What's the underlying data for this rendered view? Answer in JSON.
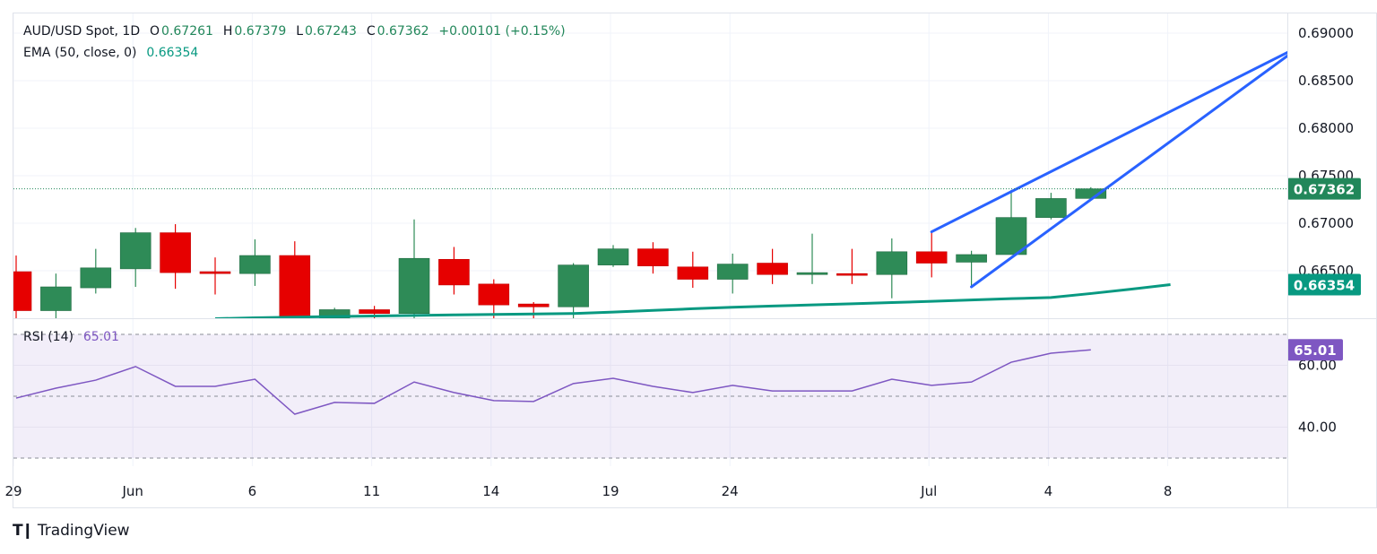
{
  "header": {
    "symbol": "AUD/USD Spot, 1D",
    "o_label": "O",
    "o": "0.67261",
    "h_label": "H",
    "h": "0.67379",
    "l_label": "L",
    "l": "0.67243",
    "c_label": "C",
    "c": "0.67362",
    "change": "+0.00101 (+0.15%)",
    "ema_label": "EMA (50, close, 0)",
    "ema_value": "0.66354",
    "rsi_label": "RSI (14)",
    "rsi_value": "65.01"
  },
  "colors": {
    "up": "#2e8b57",
    "down": "#e60000",
    "ema": "#089981",
    "rsi": "#7e57c2",
    "trendline": "#2962ff",
    "close_badge": "#22875a"
  },
  "footer": {
    "brand": "TradingView"
  },
  "chart_data": [
    {
      "type": "candlestick",
      "ylim": [
        0.66,
        0.6915
      ],
      "price_ticks": [
        "0.69000",
        "0.68500",
        "0.68000",
        "0.67500",
        "0.67000",
        "0.66500"
      ],
      "x_ticks": [
        {
          "label": "29",
          "index": 0
        },
        {
          "label": "Jun",
          "index": 3
        },
        {
          "label": "6",
          "index": 6
        },
        {
          "label": "11",
          "index": 9
        },
        {
          "label": "14",
          "index": 12
        },
        {
          "label": "19",
          "index": 15
        },
        {
          "label": "24",
          "index": 18
        },
        {
          "label": "Jul",
          "index": 23
        },
        {
          "label": "4",
          "index": 26
        },
        {
          "label": "8",
          "index": 29
        }
      ],
      "candles": [
        [
          0.6649,
          0.6666,
          0.66,
          0.6608
        ],
        [
          0.6608,
          0.6647,
          0.66,
          0.6633
        ],
        [
          0.6632,
          0.6673,
          0.6626,
          0.6653
        ],
        [
          0.6652,
          0.6695,
          0.6633,
          0.669
        ],
        [
          0.669,
          0.6699,
          0.6631,
          0.6648
        ],
        [
          0.6649,
          0.6664,
          0.6625,
          0.6647
        ],
        [
          0.6647,
          0.6683,
          0.6634,
          0.6666
        ],
        [
          0.6666,
          0.6681,
          0.66,
          0.66
        ],
        [
          0.66,
          0.6611,
          0.6598,
          0.6609
        ],
        [
          0.6609,
          0.6613,
          0.66,
          0.6605
        ],
        [
          0.6605,
          0.6704,
          0.66,
          0.6663
        ],
        [
          0.6662,
          0.6675,
          0.6625,
          0.6635
        ],
        [
          0.6636,
          0.6641,
          0.66,
          0.6614
        ],
        [
          0.6615,
          0.6617,
          0.66,
          0.6612
        ],
        [
          0.6612,
          0.6658,
          0.66,
          0.6656
        ],
        [
          0.6656,
          0.6677,
          0.6654,
          0.6673
        ],
        [
          0.6673,
          0.668,
          0.6647,
          0.6655
        ],
        [
          0.6654,
          0.667,
          0.6632,
          0.6641
        ],
        [
          0.6641,
          0.6668,
          0.6626,
          0.6657
        ],
        [
          0.6658,
          0.6673,
          0.6636,
          0.6646
        ],
        [
          0.6646,
          0.6689,
          0.6636,
          0.6648
        ],
        [
          0.6647,
          0.6673,
          0.6636,
          0.6646
        ],
        [
          0.6646,
          0.6684,
          0.6621,
          0.667
        ],
        [
          0.667,
          0.6691,
          0.6643,
          0.6658
        ],
        [
          0.6659,
          0.6671,
          0.6633,
          0.6667
        ],
        [
          0.6667,
          0.6735,
          0.6667,
          0.6706
        ],
        [
          0.6706,
          0.6732,
          0.6704,
          0.6726
        ],
        [
          0.67261,
          0.67379,
          0.67243,
          0.67362
        ]
      ],
      "ema50": {
        "name": "EMA (50, close, 0)",
        "start_index": 5,
        "values": [
          0.65995,
          0.66005,
          0.66012,
          0.66018,
          0.66024,
          0.6603,
          0.66035,
          0.6604,
          0.66045,
          0.6605,
          0.66065,
          0.66082,
          0.661,
          0.66115,
          0.66128,
          0.6614,
          0.66152,
          0.66165,
          0.66178,
          0.66192,
          0.66206,
          0.66218,
          0.6626,
          0.66305,
          0.66354
        ]
      },
      "last_price": 0.67362,
      "trendlines": [
        {
          "from": [
            23,
            0.6691
          ],
          "to": [
            32,
            0.6881
          ]
        },
        {
          "from": [
            24,
            0.6633
          ],
          "to": [
            32,
            0.6878
          ]
        }
      ]
    },
    {
      "type": "line",
      "name": "RSI (14)",
      "ylim": [
        25,
        75
      ],
      "y_ticks": [
        "60.00",
        "40.00"
      ],
      "bands": [
        70,
        50,
        30
      ],
      "values": [
        49.4,
        52.6,
        55.2,
        59.6,
        53.2,
        53.2,
        55.5,
        44.2,
        48.0,
        47.7,
        54.6,
        51.2,
        48.6,
        48.3,
        54.1,
        55.8,
        53.2,
        51.2,
        53.5,
        51.7,
        51.7,
        51.7,
        55.5,
        53.5,
        54.6,
        61.0,
        63.9,
        65.01
      ]
    }
  ]
}
